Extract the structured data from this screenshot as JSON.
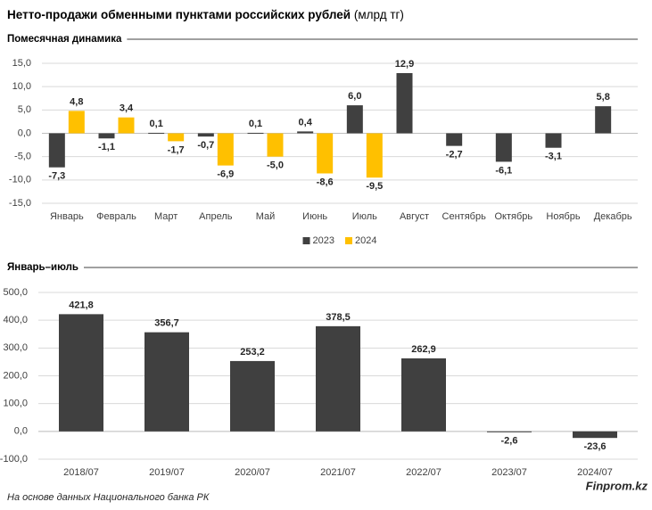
{
  "title": "Нетто-продажи обменными пунктами российских рублей",
  "title_unit": "(млрд тг)",
  "source": "На основе данных Национального банка РК",
  "brand": "Finprom.kz",
  "chart_data": [
    {
      "type": "bar",
      "title": "Помесячная динамика",
      "categories": [
        "Январь",
        "Февраль",
        "Март",
        "Апрель",
        "Май",
        "Июнь",
        "Июль",
        "Август",
        "Сентябрь",
        "Октябрь",
        "Ноябрь",
        "Декабрь"
      ],
      "series": [
        {
          "name": "2023",
          "color": "#404040",
          "values": [
            -7.3,
            -1.1,
            0.1,
            -0.7,
            0.1,
            0.4,
            6.0,
            12.9,
            -2.7,
            -6.1,
            -3.1,
            5.8
          ],
          "value_labels": [
            "-7,3",
            "-1,1",
            "0,1",
            "-0,7",
            "0,1",
            "0,4",
            "6,0",
            "12,9",
            "-2,7",
            "-6,1",
            "-3,1",
            "5,8"
          ]
        },
        {
          "name": "2024",
          "color": "#ffc000",
          "values": [
            4.8,
            3.4,
            -1.7,
            -6.9,
            -5.0,
            -8.6,
            -9.5,
            null,
            null,
            null,
            null,
            null
          ],
          "value_labels": [
            "4,8",
            "3,4",
            "-1,7",
            "-6,9",
            "-5,0",
            "-8,6",
            "-9,5",
            null,
            null,
            null,
            null,
            null
          ]
        }
      ],
      "ylim": [
        -15,
        15
      ],
      "yticks": [
        {
          "value": -15,
          "label": "-15,0"
        },
        {
          "value": -10,
          "label": "-10,0"
        },
        {
          "value": -5,
          "label": "-5,0"
        },
        {
          "value": 0,
          "label": "0,0"
        },
        {
          "value": 5,
          "label": "5,0"
        },
        {
          "value": 10,
          "label": "10,0"
        },
        {
          "value": 15,
          "label": "15,0"
        }
      ],
      "grid": true,
      "legend": "bottom"
    },
    {
      "type": "bar",
      "title": "Январь–июль",
      "categories": [
        "2018/07",
        "2019/07",
        "2020/07",
        "2021/07",
        "2022/07",
        "2023/07",
        "2024/07"
      ],
      "values": [
        421.8,
        356.7,
        253.2,
        378.5,
        262.9,
        -2.6,
        -23.6
      ],
      "value_labels": [
        "421,8",
        "356,7",
        "253,2",
        "378,5",
        "262,9",
        "-2,6",
        "-23,6"
      ],
      "color": "#404040",
      "ylim": [
        -100,
        500
      ],
      "yticks": [
        {
          "value": -100,
          "label": "-100,0"
        },
        {
          "value": 0,
          "label": "0,0"
        },
        {
          "value": 100,
          "label": "100,0"
        },
        {
          "value": 200,
          "label": "200,0"
        },
        {
          "value": 300,
          "label": "300,0"
        },
        {
          "value": 400,
          "label": "400,0"
        },
        {
          "value": 500,
          "label": "500,0"
        }
      ],
      "grid": true
    }
  ]
}
